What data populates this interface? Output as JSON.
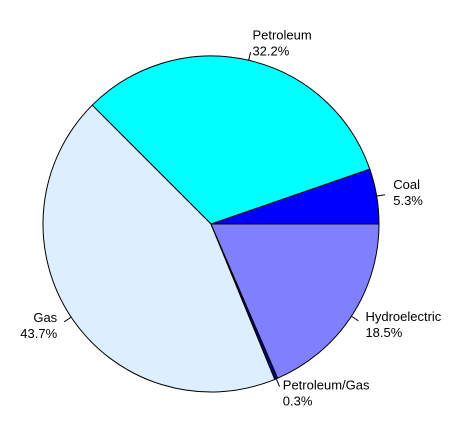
{
  "chart_data": {
    "type": "pie",
    "categories": [
      "Coal",
      "Petroleum",
      "Gas",
      "Petroleum/Gas",
      "Hydroelectric"
    ],
    "values": [
      5.3,
      32.2,
      43.7,
      0.3,
      18.5
    ],
    "value_labels": [
      "5.3%",
      "32.2%",
      "43.7%",
      "0.3%",
      "18.5%"
    ],
    "colors": [
      "#0000ff",
      "#00ffff",
      "#ddeeff",
      "#000080",
      "#8080ff"
    ]
  }
}
